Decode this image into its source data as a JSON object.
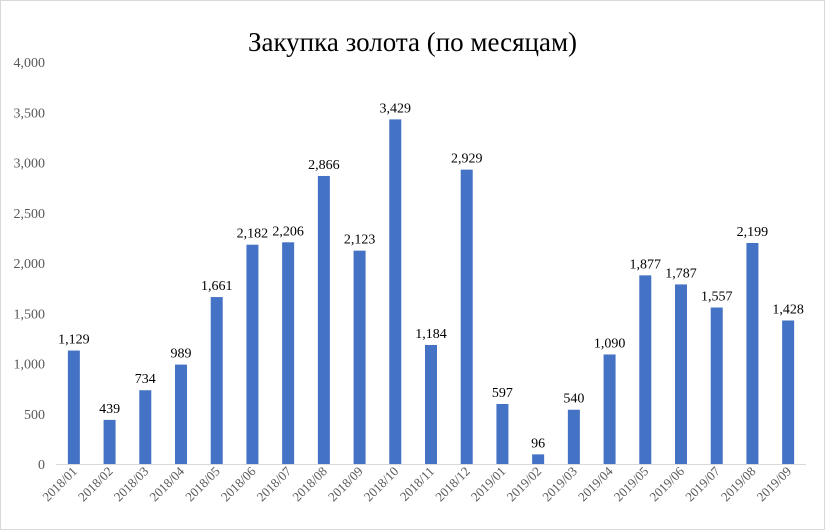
{
  "chart_data": {
    "type": "bar",
    "title": "Закупка золота (по месяцам)",
    "xlabel": "",
    "ylabel": "",
    "ylim": [
      0,
      4000
    ],
    "yticks": [
      "0",
      "500",
      "1,000",
      "1,500",
      "2,000",
      "2,500",
      "3,000",
      "3,500",
      "4,000"
    ],
    "ytick_values": [
      0,
      500,
      1000,
      1500,
      2000,
      2500,
      3000,
      3500,
      4000
    ],
    "grid": false,
    "legend": "none",
    "bar_color": "#4472c4",
    "categories": [
      "2018/01",
      "2018/02",
      "2018/03",
      "2018/04",
      "2018/05",
      "2018/06",
      "2018/07",
      "2018/08",
      "2018/09",
      "2018/10",
      "2018/11",
      "2018/12",
      "2019/01",
      "2019/02",
      "2019/03",
      "2019/04",
      "2019/05",
      "2019/06",
      "2019/07",
      "2019/08",
      "2019/09"
    ],
    "values": [
      1129,
      439,
      734,
      989,
      1661,
      2182,
      2206,
      2866,
      2123,
      3429,
      1184,
      2929,
      597,
      96,
      540,
      1090,
      1877,
      1787,
      1557,
      2199,
      1428
    ],
    "value_labels": [
      "1,129",
      "439",
      "734",
      "989",
      "1,661",
      "2,182",
      "2,206",
      "2,866",
      "2,123",
      "3,429",
      "1,184",
      "2,929",
      "597",
      "96",
      "540",
      "1,090",
      "1,877",
      "1,787",
      "1,557",
      "2,199",
      "1,428"
    ]
  }
}
